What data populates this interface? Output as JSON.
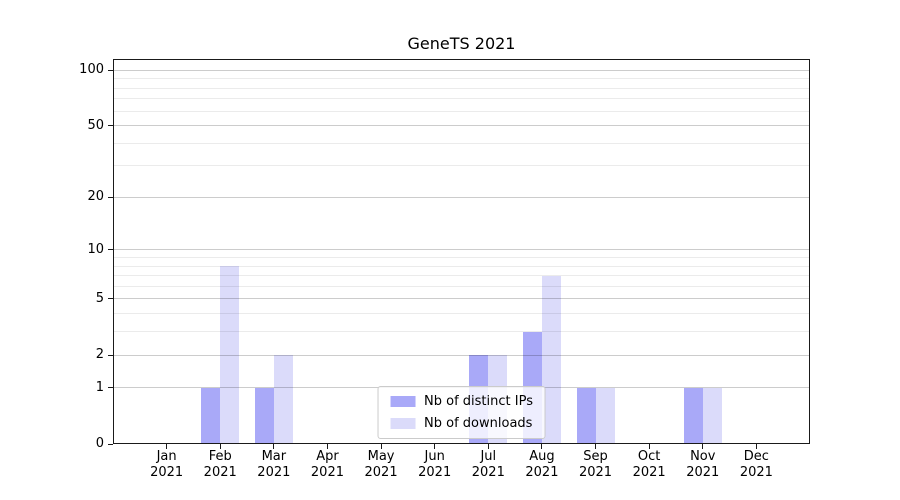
{
  "chart_data": {
    "type": "bar",
    "title": "GeneTS 2021",
    "x_tick_months": [
      "Jan",
      "Feb",
      "Mar",
      "Apr",
      "May",
      "Jun",
      "Jul",
      "Aug",
      "Sep",
      "Oct",
      "Nov",
      "Dec"
    ],
    "x_tick_year": "2021",
    "series": [
      {
        "name": "Nb of distinct IPs",
        "color": "#a9a9f8",
        "values": [
          0,
          1,
          1,
          0,
          0,
          0,
          2,
          3,
          1,
          0,
          1,
          0
        ]
      },
      {
        "name": "Nb of downloads",
        "color": "#dbdbfa",
        "values": [
          0,
          8,
          2,
          0,
          0,
          0,
          2,
          7,
          1,
          0,
          1,
          0
        ]
      }
    ],
    "yscale": "log1p",
    "ylim": [
      0,
      115
    ],
    "y_major_ticks": [
      0,
      1,
      2,
      5,
      10,
      20,
      50,
      100
    ],
    "y_minor_ticks": [
      3,
      4,
      6,
      7,
      8,
      9,
      30,
      40,
      60,
      70,
      80,
      90
    ],
    "grid": "on",
    "legend_position": "lower center",
    "colors": {
      "axis": "#1a1a1a",
      "distinct_ips_bar": "#a9a9f8",
      "downloads_bar": "#dbdbfa",
      "background": "#ffffff"
    }
  }
}
